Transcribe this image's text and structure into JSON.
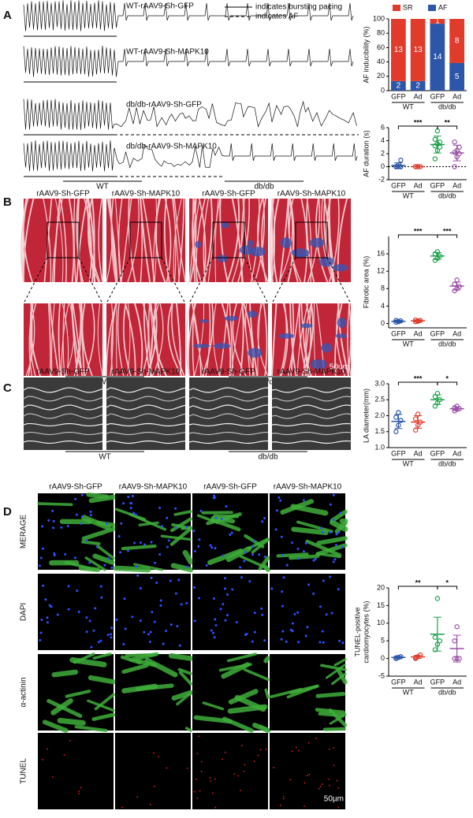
{
  "panel_labels": [
    "A",
    "B",
    "C",
    "D"
  ],
  "panel_a": {
    "traces": [
      "WT-rAAV9-Sh-GFP",
      "WT-rAAV9-Sh-MAPK10",
      "db/db-rAAV9-Sh-GFP",
      "db/db-rAAV9-Sh-MAPK10"
    ],
    "legend": [
      "indicates bursting pacing",
      "indicates AF"
    ],
    "groups": [
      "WT",
      "db/db"
    ]
  },
  "panel_b": {
    "columns": [
      "rAAV9-Sh-GFP",
      "rAAV9-Sh-MAPK10",
      "rAAV9-Sh-GFP",
      "rAAV9-Sh-MAPK10"
    ],
    "groups": [
      "WT",
      "db/db"
    ],
    "scale_bar": "50µm"
  },
  "panel_c": {
    "columns": [
      "rAAV9-Sh-GFP",
      "rAAV9-Sh-MAPK10",
      "rAAV9-Sh-GFP",
      "rAAV9-Sh-MAPK10"
    ],
    "groups": [
      "WT",
      "db/db"
    ]
  },
  "panel_d": {
    "columns": [
      "rAAV9-Sh-GFP",
      "rAAV9-Sh-MAPK10",
      "rAAV9-Sh-GFP",
      "rAAV9-Sh-MAPK10"
    ],
    "rows": [
      "MERAGE",
      "DAPI",
      "α-actinin",
      "TUNEL"
    ],
    "scale_bar": "50µm"
  },
  "chart_data": [
    {
      "type": "stacked-bar",
      "ylabel": "AF inducibility (%)",
      "categories": [
        "GFP",
        "Ad",
        "GFP",
        "Ad"
      ],
      "groups": [
        "WT",
        "db/db"
      ],
      "ylim": [
        0,
        100
      ],
      "yticks": [
        0,
        20,
        40,
        60,
        80,
        100
      ],
      "series": [
        {
          "name": "SR",
          "color": "#e13b2b",
          "values": [
            86.7,
            86.7,
            6.7,
            61.5
          ],
          "counts": [
            13,
            13,
            1,
            8
          ]
        },
        {
          "name": "AF",
          "color": "#2d55a8",
          "values": [
            13.3,
            13.3,
            93.3,
            38.5
          ],
          "counts": [
            2,
            2,
            14,
            5
          ]
        }
      ]
    },
    {
      "type": "dot",
      "ylabel": "AF duration (s)",
      "categories": [
        "GFP",
        "Ad",
        "GFP",
        "Ad"
      ],
      "groups": [
        "WT",
        "db/db"
      ],
      "ylim": [
        -2,
        6
      ],
      "yticks": [
        -2,
        0,
        2,
        4,
        6
      ],
      "hline": 0,
      "colors": [
        "#2d55a8",
        "#e13b2b",
        "#1aa34a",
        "#9a4fa8"
      ],
      "points": [
        [
          0,
          0,
          0,
          0,
          0.3,
          1
        ],
        [
          0,
          0,
          0,
          0,
          0
        ],
        [
          1.2,
          2.5,
          3,
          3.2,
          3.5,
          3.8,
          4.2,
          5.5
        ],
        [
          0,
          1.5,
          2,
          2.2,
          2.5,
          3,
          3.8
        ]
      ],
      "means": [
        0.2,
        0,
        3.4,
        2.1
      ],
      "sds": [
        0.4,
        0,
        1.3,
        1.2
      ],
      "significance": [
        "***",
        "**"
      ]
    },
    {
      "type": "dot",
      "ylabel": "Fibrotic area (%)",
      "categories": [
        "GFP",
        "Ad",
        "GFP",
        "Ad"
      ],
      "groups": [
        "WT",
        "db/db"
      ],
      "ylim": [
        -1,
        20
      ],
      "yticks": [
        0,
        4,
        8,
        12,
        16
      ],
      "colors": [
        "#2d55a8",
        "#e13b2b",
        "#1aa34a",
        "#9a4fa8"
      ],
      "points": [
        [
          0.3,
          0.5,
          0.6,
          0.7,
          0.4
        ],
        [
          0.4,
          0.6,
          0.7,
          0.8,
          0.5
        ],
        [
          14.5,
          15,
          15.5,
          16,
          16.5
        ],
        [
          7.5,
          8,
          8.5,
          9,
          10
        ]
      ],
      "means": [
        0.5,
        0.6,
        15.5,
        8.6
      ],
      "sds": [
        0.2,
        0.2,
        0.8,
        0.9
      ],
      "significance": [
        "***",
        "***"
      ]
    },
    {
      "type": "dot",
      "ylabel": "LA diameter(mm)",
      "categories": [
        "GFP",
        "Ad",
        "GFP",
        "Ad"
      ],
      "groups": [
        "WT",
        "db/db"
      ],
      "ylim": [
        1,
        3
      ],
      "yticks": [
        {
          "value": 1,
          "label": "1.0"
        },
        1.5,
        {
          "value": 2,
          "label": "2.0"
        },
        2.5,
        {
          "value": 3,
          "label": "3.0"
        }
      ],
      "colors": [
        "#2d55a8",
        "#e13b2b",
        "#1aa34a",
        "#9a4fa8"
      ],
      "points": [
        [
          1.5,
          1.7,
          1.85,
          1.95,
          2.1
        ],
        [
          1.55,
          1.7,
          1.8,
          1.9,
          2.05
        ],
        [
          2.3,
          2.4,
          2.5,
          2.6,
          2.7
        ],
        [
          2.15,
          2.2,
          2.22,
          2.25,
          2.3
        ]
      ],
      "means": [
        1.82,
        1.8,
        2.5,
        2.22
      ],
      "sds": [
        0.22,
        0.2,
        0.15,
        0.06
      ],
      "significance": [
        "***",
        "*"
      ]
    },
    {
      "type": "dot",
      "ylabel": [
        "TUNEL-positive",
        "cardiomyocytes (%)"
      ],
      "categories": [
        "GFP",
        "Ad",
        "GFP",
        "Ad"
      ],
      "groups": [
        "WT",
        "db/db"
      ],
      "ylim": [
        -5,
        20
      ],
      "yticks": [
        -5,
        0,
        5,
        10,
        15,
        20
      ],
      "colors": [
        "#2d55a8",
        "#e13b2b",
        "#1aa34a",
        "#9a4fa8"
      ],
      "points": [
        [
          0,
          0.3,
          0.5,
          0.2
        ],
        [
          0,
          0.5,
          1,
          0.3
        ],
        [
          2.5,
          4,
          5,
          6,
          17
        ],
        [
          0,
          0,
          0,
          5,
          9
        ]
      ],
      "means": [
        0.3,
        0.45,
        6.9,
        2.8
      ],
      "sds": [
        0.3,
        0.4,
        4.8,
        3.8
      ],
      "significance": [
        "**",
        "*"
      ]
    }
  ]
}
